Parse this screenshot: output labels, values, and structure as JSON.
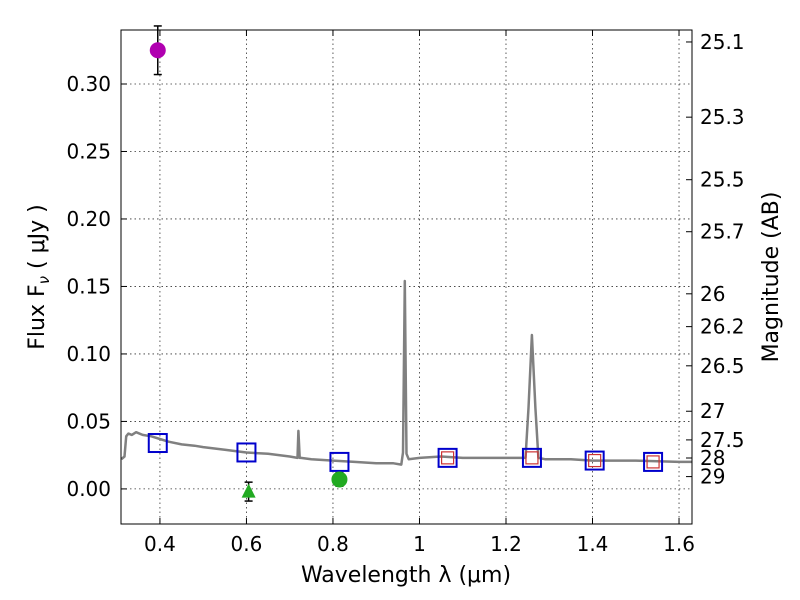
{
  "chart_data": {
    "type": "scatter",
    "xlabel": "Wavelength  λ (μm)",
    "ylabel": "Flux  F",
    "ylabel_subscript": "ν",
    "ylabel_unit": " ( μJy )",
    "y2label": "Magnitude (AB)",
    "xlim": [
      0.31,
      1.63
    ],
    "ylim": [
      -0.026,
      0.34
    ],
    "grid": true,
    "x_ticks": [
      {
        "value": 0.4,
        "label": "0.4"
      },
      {
        "value": 0.6,
        "label": "0.6"
      },
      {
        "value": 0.8,
        "label": "0.8"
      },
      {
        "value": 1.0,
        "label": "1"
      },
      {
        "value": 1.2,
        "label": "1.2"
      },
      {
        "value": 1.4,
        "label": "1.4"
      },
      {
        "value": 1.6,
        "label": "1.6"
      }
    ],
    "y_ticks": [
      {
        "value": 0.0,
        "label": "0.00"
      },
      {
        "value": 0.05,
        "label": "0.05"
      },
      {
        "value": 0.1,
        "label": "0.10"
      },
      {
        "value": 0.15,
        "label": "0.15"
      },
      {
        "value": 0.2,
        "label": "0.20"
      },
      {
        "value": 0.25,
        "label": "0.25"
      },
      {
        "value": 0.3,
        "label": "0.30"
      }
    ],
    "y2_ticks": [
      {
        "value": 25.1,
        "label": "25.1"
      },
      {
        "value": 25.3,
        "label": "25.3"
      },
      {
        "value": 25.5,
        "label": "25.5"
      },
      {
        "value": 25.7,
        "label": "25.7"
      },
      {
        "value": 26.0,
        "label": "26"
      },
      {
        "value": 26.2,
        "label": "26.2"
      },
      {
        "value": 26.5,
        "label": "26.5"
      },
      {
        "value": 27.0,
        "label": "27"
      },
      {
        "value": 27.5,
        "label": "27.5"
      },
      {
        "value": 28.0,
        "label": "28"
      },
      {
        "value": 29.0,
        "label": "29"
      }
    ],
    "series": [
      {
        "name": "model-sed",
        "kind": "line",
        "color": "#808080",
        "x": [
          0.311,
          0.318,
          0.322,
          0.327,
          0.335,
          0.345,
          0.36,
          0.38,
          0.4,
          0.42,
          0.45,
          0.48,
          0.5,
          0.55,
          0.6,
          0.65,
          0.7,
          0.718,
          0.72,
          0.723,
          0.726,
          0.75,
          0.8,
          0.85,
          0.9,
          0.94,
          0.958,
          0.962,
          0.966,
          0.97,
          0.975,
          1.0,
          1.05,
          1.1,
          1.15,
          1.2,
          1.23,
          1.245,
          1.252,
          1.26,
          1.268,
          1.275,
          1.29,
          1.35,
          1.4,
          1.5,
          1.6,
          1.63
        ],
        "y": [
          0.022,
          0.024,
          0.039,
          0.041,
          0.04,
          0.042,
          0.04,
          0.039,
          0.037,
          0.035,
          0.033,
          0.032,
          0.031,
          0.029,
          0.027,
          0.026,
          0.024,
          0.023,
          0.043,
          0.023,
          0.023,
          0.022,
          0.021,
          0.02,
          0.019,
          0.019,
          0.018,
          0.027,
          0.154,
          0.026,
          0.022,
          0.023,
          0.024,
          0.023,
          0.023,
          0.023,
          0.023,
          0.023,
          0.06,
          0.114,
          0.06,
          0.023,
          0.022,
          0.022,
          0.021,
          0.021,
          0.02,
          0.02
        ]
      },
      {
        "name": "model-photometry",
        "kind": "open-square",
        "color": "#0000cc",
        "x": [
          0.395,
          0.6,
          0.815,
          1.065,
          1.26,
          1.405,
          1.54
        ],
        "y": [
          0.034,
          0.027,
          0.02,
          0.023,
          0.023,
          0.021,
          0.02
        ]
      },
      {
        "name": "observed-hst",
        "kind": "open-square",
        "color": "#cc3333",
        "x": [
          1.065,
          1.26,
          1.405,
          1.54
        ],
        "y": [
          0.023,
          0.023,
          0.021,
          0.02
        ]
      },
      {
        "name": "detection-magenta",
        "kind": "circle",
        "color": "#b000b0",
        "x": [
          0.395
        ],
        "y": [
          0.325
        ],
        "err": [
          0.018
        ]
      },
      {
        "name": "detection-green",
        "kind": "circle",
        "color": "#22aa22",
        "x": [
          0.815
        ],
        "y": [
          0.007
        ],
        "err": [
          0.005
        ]
      },
      {
        "name": "upper-limit",
        "kind": "triangle",
        "color": "#22aa22",
        "x": [
          0.605
        ],
        "y": [
          -0.002
        ],
        "err": [
          0.007
        ]
      }
    ]
  }
}
